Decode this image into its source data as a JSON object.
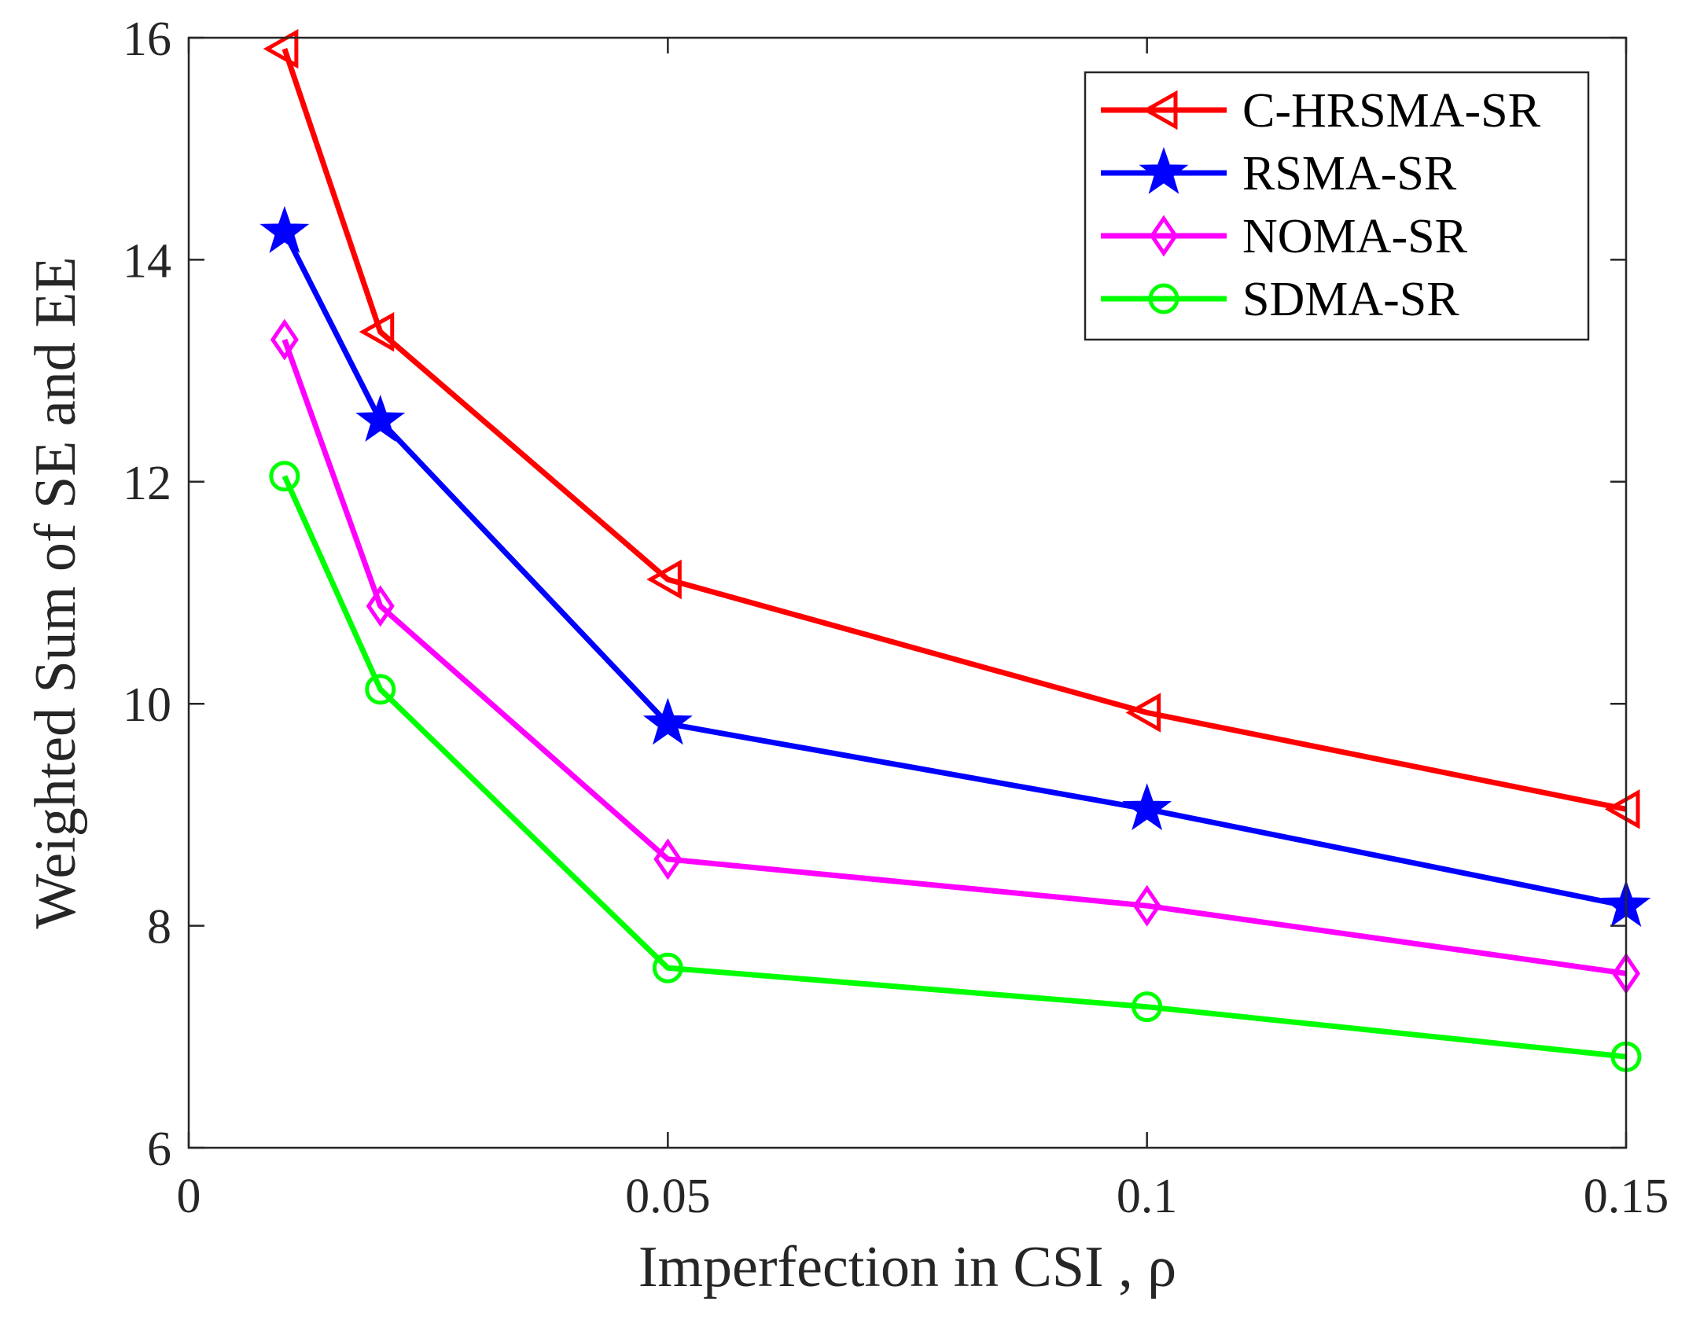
{
  "chart_data": {
    "type": "line",
    "title": "",
    "xlabel": "Imperfection in CSI , ρ",
    "ylabel": "Weighted Sum of SE and EE",
    "xlim": [
      0,
      0.15
    ],
    "ylim": [
      6,
      16
    ],
    "xticks": [
      0,
      0.05,
      0.1,
      0.15
    ],
    "xtick_labels": [
      "0",
      "0.05",
      "0.1",
      "0.15"
    ],
    "yticks": [
      6,
      8,
      10,
      12,
      14,
      16
    ],
    "ytick_labels": [
      "6",
      "8",
      "10",
      "12",
      "14",
      "16"
    ],
    "grid": false,
    "legend_position": "top-right",
    "x": [
      0.01,
      0.02,
      0.05,
      0.1,
      0.15
    ],
    "series": [
      {
        "name": "C-HRSMA-SR",
        "color": "#ff0000",
        "marker": "triangle-left",
        "values": [
          15.9,
          13.35,
          11.12,
          9.92,
          9.05
        ]
      },
      {
        "name": "RSMA-SR",
        "color": "#0000ff",
        "marker": "star",
        "values": [
          14.25,
          12.55,
          9.82,
          9.05,
          8.18
        ]
      },
      {
        "name": "NOMA-SR",
        "color": "#ff00ff",
        "marker": "diamond",
        "values": [
          13.28,
          10.88,
          8.6,
          8.18,
          7.57
        ]
      },
      {
        "name": "SDMA-SR",
        "color": "#00ff00",
        "marker": "circle",
        "values": [
          12.05,
          10.13,
          7.62,
          7.27,
          6.82
        ]
      }
    ]
  }
}
